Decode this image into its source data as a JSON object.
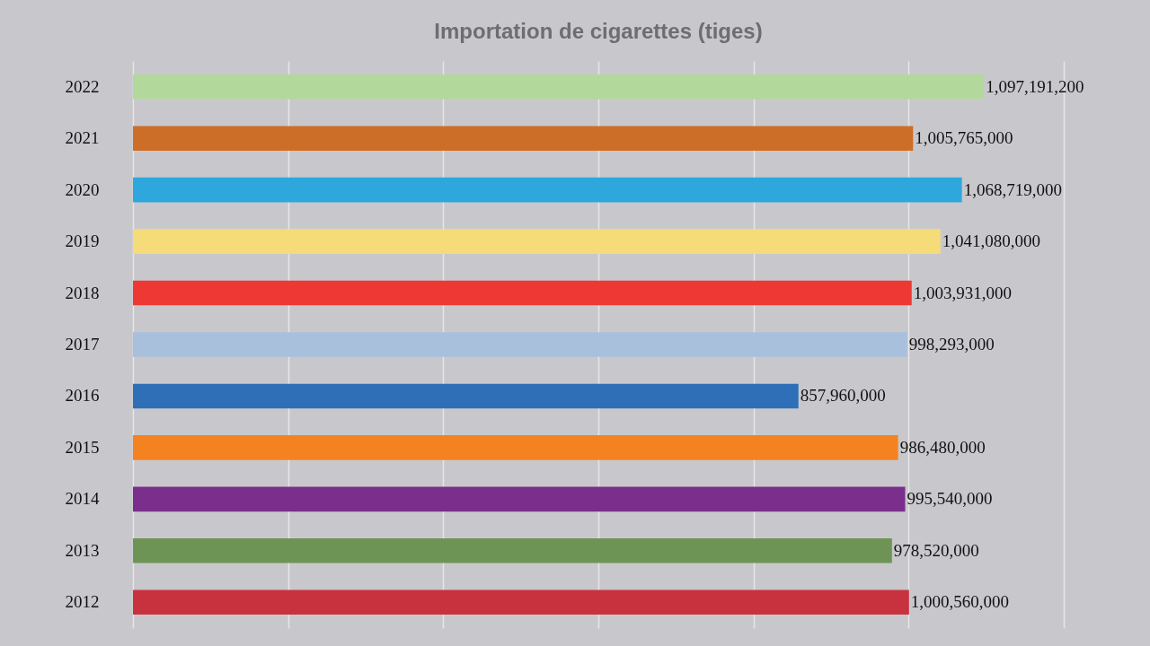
{
  "chart_data": {
    "type": "bar",
    "orientation": "horizontal",
    "title": "Importation de cigarettes (tiges)",
    "categories": [
      "2022",
      "2021",
      "2020",
      "2019",
      "2018",
      "2017",
      "2016",
      "2015",
      "2014",
      "2013",
      "2012"
    ],
    "values": [
      1097191200,
      1005765000,
      1068719000,
      1041080000,
      1003931000,
      998293000,
      857960000,
      986480000,
      995540000,
      978520000,
      1000560000
    ],
    "colors": [
      "#b3d89c",
      "#cd6e28",
      "#2ea8dc",
      "#f5dc78",
      "#ee3833",
      "#a8c0dc",
      "#2e6fb7",
      "#f58220",
      "#7a2f8c",
      "#6e9455",
      "#c8323f"
    ],
    "value_labels": [
      "1,097,191,200",
      "1,005,765,000",
      "1,068,719,000",
      "1,041,080,000",
      "1,003,931,000",
      "998,293,000",
      "857,960,000",
      "986,480,000",
      "995,540,000",
      "978,520,000",
      "1,000,560,000"
    ],
    "xlim": [
      0,
      1200000000
    ],
    "xticks": [
      {
        "value": 0,
        "label": null
      },
      {
        "value": 200000000,
        "label": null
      },
      {
        "value": 400000000,
        "label": null
      },
      {
        "value": 600000000,
        "label": null
      },
      {
        "value": 800000000,
        "label": null
      },
      {
        "value": 1000000000,
        "label": null
      },
      {
        "value": 1200000000,
        "label": null
      }
    ],
    "tick_labels": "y",
    "grid": "x",
    "legend": false
  }
}
